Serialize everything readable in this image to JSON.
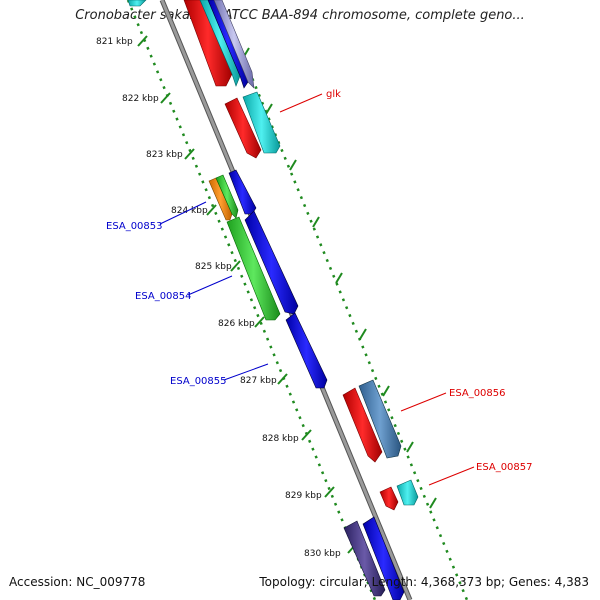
{
  "title": "Cronobacter sakazakii ATCC BAA-894 chromosome, complete geno...",
  "accession": "Accession: NC_009778",
  "summary": "Topology: circular; Length: 4,368,373 bp; Genes: 4,383",
  "ruler": {
    "ticks": [
      "821 kbp",
      "822 kbp",
      "823 kbp",
      "824 kbp",
      "825 kbp",
      "826 kbp",
      "827 kbp",
      "828 kbp",
      "829 kbp",
      "830 kbp"
    ]
  },
  "colors": {
    "backbone": "#8c8c8c",
    "ruler_dots": "#1f8a1f",
    "reverse_label": "#0000cc",
    "forward_label": "#dd0000"
  },
  "features": {
    "reverse": [
      {
        "label": "ESA_00853"
      },
      {
        "label": "ESA_00854"
      },
      {
        "label": "ESA_00855"
      }
    ],
    "forward": [
      {
        "label": "glk"
      },
      {
        "label": "ESA_00856"
      },
      {
        "label": "ESA_00857"
      }
    ]
  }
}
